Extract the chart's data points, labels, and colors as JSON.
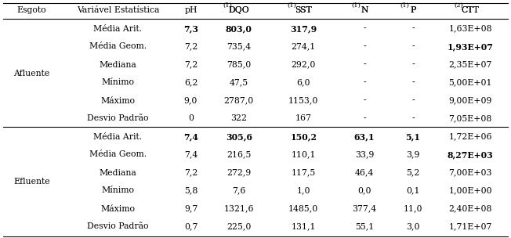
{
  "col_headers_base": [
    "Esgoto",
    "Variável Estatística",
    "pH",
    "DQO",
    "SST",
    "N",
    "P",
    "CTT"
  ],
  "col_headers_super": [
    "",
    "",
    "",
    "(1)",
    "(1)",
    "(1)",
    "(1)",
    "(2)"
  ],
  "rows": [
    {
      "esgoto": "Afluente",
      "stat": "Média Arit.",
      "ph": "7,3",
      "dqo": "803,0",
      "sst": "317,9",
      "n": "-",
      "p": "-",
      "ctt": "1,63E+08",
      "bold_ph": true,
      "bold_dqo": true,
      "bold_sst": true,
      "bold_n": false,
      "bold_p": false,
      "bold_ctt": false
    },
    {
      "esgoto": "",
      "stat": "Média Geom.",
      "ph": "7,2",
      "dqo": "735,4",
      "sst": "274,1",
      "n": "-",
      "p": "-",
      "ctt": "1,93E+07",
      "bold_ph": false,
      "bold_dqo": false,
      "bold_sst": false,
      "bold_n": false,
      "bold_p": false,
      "bold_ctt": true
    },
    {
      "esgoto": "",
      "stat": "Mediana",
      "ph": "7,2",
      "dqo": "785,0",
      "sst": "292,0",
      "n": "-",
      "p": "-",
      "ctt": "2,35E+07",
      "bold_ph": false,
      "bold_dqo": false,
      "bold_sst": false,
      "bold_n": false,
      "bold_p": false,
      "bold_ctt": false
    },
    {
      "esgoto": "",
      "stat": "Mínimo",
      "ph": "6,2",
      "dqo": "47,5",
      "sst": "6,0",
      "n": "-",
      "p": "-",
      "ctt": "5,00E+01",
      "bold_ph": false,
      "bold_dqo": false,
      "bold_sst": false,
      "bold_n": false,
      "bold_p": false,
      "bold_ctt": false
    },
    {
      "esgoto": "",
      "stat": "Máximo",
      "ph": "9,0",
      "dqo": "2787,0",
      "sst": "1153,0",
      "n": "-",
      "p": "-",
      "ctt": "9,00E+09",
      "bold_ph": false,
      "bold_dqo": false,
      "bold_sst": false,
      "bold_n": false,
      "bold_p": false,
      "bold_ctt": false
    },
    {
      "esgoto": "",
      "stat": "Desvio Padrão",
      "ph": "0",
      "dqo": "322",
      "sst": "167",
      "n": "-",
      "p": "-",
      "ctt": "7,05E+08",
      "bold_ph": false,
      "bold_dqo": false,
      "bold_sst": false,
      "bold_n": false,
      "bold_p": false,
      "bold_ctt": false
    },
    {
      "esgoto": "Efluente",
      "stat": "Média Arit.",
      "ph": "7,4",
      "dqo": "305,6",
      "sst": "150,2",
      "n": "63,1",
      "p": "5,1",
      "ctt": "1,72E+06",
      "bold_ph": true,
      "bold_dqo": true,
      "bold_sst": true,
      "bold_n": true,
      "bold_p": true,
      "bold_ctt": false
    },
    {
      "esgoto": "",
      "stat": "Média Geom.",
      "ph": "7,4",
      "dqo": "216,5",
      "sst": "110,1",
      "n": "33,9",
      "p": "3,9",
      "ctt": "8,27E+03",
      "bold_ph": false,
      "bold_dqo": false,
      "bold_sst": false,
      "bold_n": false,
      "bold_p": false,
      "bold_ctt": true
    },
    {
      "esgoto": "",
      "stat": "Mediana",
      "ph": "7,2",
      "dqo": "272,9",
      "sst": "117,5",
      "n": "46,4",
      "p": "5,2",
      "ctt": "7,00E+03",
      "bold_ph": false,
      "bold_dqo": false,
      "bold_sst": false,
      "bold_n": false,
      "bold_p": false,
      "bold_ctt": false
    },
    {
      "esgoto": "",
      "stat": "Mínimo",
      "ph": "5,8",
      "dqo": "7,6",
      "sst": "1,0",
      "n": "0,0",
      "p": "0,1",
      "ctt": "1,00E+00",
      "bold_ph": false,
      "bold_dqo": false,
      "bold_sst": false,
      "bold_n": false,
      "bold_p": false,
      "bold_ctt": false
    },
    {
      "esgoto": "",
      "stat": "Máximo",
      "ph": "9,7",
      "dqo": "1321,6",
      "sst": "1485,0",
      "n": "377,4",
      "p": "11,0",
      "ctt": "2,40E+08",
      "bold_ph": false,
      "bold_dqo": false,
      "bold_sst": false,
      "bold_n": false,
      "bold_p": false,
      "bold_ctt": false
    },
    {
      "esgoto": "",
      "stat": "Desvio Padrão",
      "ph": "0,7",
      "dqo": "225,0",
      "sst": "131,1",
      "n": "55,1",
      "p": "3,0",
      "ctt": "1,71E+07",
      "bold_ph": false,
      "bold_dqo": false,
      "bold_sst": false,
      "bold_n": false,
      "bold_p": false,
      "bold_ctt": false
    }
  ],
  "background_color": "#ffffff",
  "text_color": "#000000",
  "font_size": 7.8,
  "super_font_size": 6.0,
  "line_color": "#000000",
  "line_width": 0.8
}
